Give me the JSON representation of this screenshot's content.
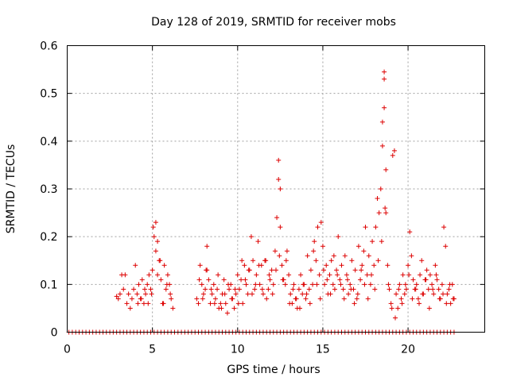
{
  "chart_data": {
    "type": "scatter",
    "title": "Day 128 of 2019, SRMTID for receiver mobs",
    "xlabel": "GPS time / hours",
    "ylabel": "SRMTID / TECUs",
    "xlim": [
      0,
      24.5
    ],
    "ylim": [
      0,
      0.6
    ],
    "xticks": [
      0,
      5,
      10,
      15,
      20
    ],
    "xtick_labels": [
      "0",
      "5",
      "10",
      "15",
      "20"
    ],
    "yticks": [
      0,
      0.1,
      0.2,
      0.3,
      0.4,
      0.5,
      0.6
    ],
    "ytick_labels": [
      "0",
      "0.1",
      "0.2",
      "0.3",
      "0.4",
      "0.5",
      "0.6"
    ],
    "grid": true,
    "legend": "none",
    "marker": "+",
    "color": "#dd0000",
    "series": [
      {
        "name": "SRMTID",
        "x": [
          0.1,
          0.3,
          0.5,
          0.7,
          0.9,
          1.1,
          1.3,
          1.5,
          1.7,
          1.9,
          2.1,
          2.3,
          2.5,
          2.7,
          2.9,
          3.1,
          3.3,
          3.5,
          3.7,
          3.9,
          4.1,
          4.3,
          4.5,
          4.7,
          4.9,
          5.1,
          5.3,
          5.5,
          5.7,
          5.9,
          6.1,
          6.3,
          6.5,
          6.7,
          6.9,
          7.1,
          7.3,
          7.5,
          7.7,
          7.9,
          8.1,
          8.3,
          8.5,
          8.7,
          8.9,
          9.1,
          9.3,
          9.5,
          9.7,
          9.9,
          10.1,
          10.3,
          10.5,
          10.7,
          10.9,
          11.1,
          11.3,
          11.5,
          11.7,
          11.9,
          12.1,
          12.3,
          12.5,
          12.7,
          12.9,
          13.1,
          13.3,
          13.5,
          13.7,
          13.9,
          14.1,
          14.3,
          14.5,
          14.7,
          14.9,
          15.1,
          15.3,
          15.5,
          15.7,
          15.9,
          16.1,
          16.3,
          16.5,
          16.7,
          16.9,
          17.1,
          17.3,
          17.5,
          17.7,
          17.9,
          18.1,
          18.3,
          18.5,
          18.7,
          18.9,
          19.1,
          19.3,
          19.5,
          19.7,
          19.9,
          20.1,
          20.3,
          20.5,
          20.7,
          20.9,
          21.1,
          21.3,
          21.5,
          21.7,
          21.9,
          22.1,
          22.3,
          22.5,
          22.7,
          2.9,
          3.0,
          3.1,
          3.2,
          3.3,
          3.5,
          3.7,
          3.8,
          3.9,
          4.0,
          4.1,
          4.2,
          4.3,
          4.4,
          4.5,
          4.6,
          4.7,
          4.8,
          4.9,
          5.0,
          5.1,
          5.2,
          5.2,
          5.3,
          5.3,
          5.4,
          5.5,
          5.6,
          5.7,
          5.8,
          5.9,
          6.0,
          6.1,
          6.2,
          7.6,
          7.7,
          7.8,
          7.9,
          8.0,
          8.1,
          8.2,
          8.2,
          8.3,
          8.4,
          8.5,
          8.6,
          8.7,
          8.8,
          8.9,
          9.0,
          9.1,
          9.2,
          9.3,
          9.4,
          9.5,
          9.6,
          9.7,
          9.8,
          9.9,
          10.0,
          10.1,
          10.2,
          10.3,
          10.4,
          10.5,
          10.6,
          10.7,
          10.8,
          10.9,
          11.0,
          11.1,
          11.2,
          11.3,
          11.4,
          11.5,
          11.6,
          11.7,
          11.8,
          11.9,
          12.0,
          12.1,
          12.2,
          12.3,
          12.4,
          12.4,
          12.5,
          12.5,
          12.6,
          12.7,
          12.8,
          12.9,
          13.0,
          13.1,
          13.2,
          13.3,
          13.4,
          13.5,
          13.6,
          13.7,
          13.8,
          13.9,
          14.0,
          14.1,
          14.2,
          14.3,
          14.4,
          14.5,
          14.6,
          14.7,
          14.8,
          14.9,
          15.0,
          15.1,
          15.2,
          15.3,
          15.4,
          15.5,
          15.6,
          15.7,
          15.8,
          15.9,
          16.0,
          16.1,
          16.2,
          16.3,
          16.4,
          16.5,
          16.6,
          16.7,
          16.8,
          16.9,
          17.0,
          17.1,
          17.2,
          17.3,
          17.4,
          17.5,
          17.6,
          17.7,
          17.8,
          17.9,
          18.0,
          18.1,
          18.2,
          18.3,
          18.4,
          18.5,
          18.5,
          18.6,
          18.6,
          18.6,
          18.7,
          18.7,
          18.8,
          18.9,
          19.0,
          19.1,
          19.2,
          19.3,
          19.4,
          19.5,
          19.6,
          19.7,
          19.8,
          19.9,
          20.0,
          20.1,
          20.2,
          20.3,
          20.4,
          20.5,
          20.6,
          20.7,
          20.8,
          20.9,
          21.0,
          21.1,
          21.2,
          21.3,
          21.4,
          21.5,
          21.6,
          21.7,
          21.8,
          21.9,
          22.0,
          22.1,
          22.2,
          22.3,
          22.4,
          22.5,
          22.6,
          22.7,
          3.4,
          3.6,
          4.15,
          4.35,
          4.55,
          4.75,
          4.95,
          5.05,
          5.45,
          5.65,
          5.85,
          6.05,
          7.75,
          7.95,
          8.15,
          8.45,
          8.65,
          8.85,
          9.05,
          9.25,
          9.45,
          9.65,
          9.85,
          10.05,
          10.25,
          10.45,
          10.65,
          10.85,
          11.05,
          11.25,
          11.45,
          11.65,
          11.85,
          12.05,
          12.25,
          12.45,
          12.65,
          12.85,
          13.05,
          13.25,
          13.45,
          13.65,
          13.85,
          14.05,
          14.25,
          14.45,
          14.65,
          14.85,
          15.05,
          15.25,
          15.45,
          15.65,
          15.85,
          16.05,
          16.25,
          16.45,
          16.65,
          16.85,
          17.05,
          17.25,
          17.45,
          17.65,
          17.85,
          18.05,
          18.25,
          18.45,
          18.65,
          18.85,
          19.05,
          19.25,
          19.45,
          19.65,
          19.85,
          20.05,
          20.25,
          20.45,
          20.65,
          20.85,
          21.05,
          21.25,
          21.45,
          21.65,
          21.85,
          22.05,
          22.25,
          22.45,
          22.65
        ],
        "y": [
          0,
          0,
          0,
          0,
          0,
          0,
          0,
          0,
          0,
          0,
          0,
          0,
          0,
          0,
          0,
          0,
          0,
          0,
          0,
          0,
          0,
          0,
          0,
          0,
          0,
          0,
          0,
          0,
          0,
          0,
          0,
          0,
          0,
          0,
          0,
          0,
          0,
          0,
          0,
          0,
          0,
          0,
          0,
          0,
          0,
          0,
          0,
          0,
          0,
          0,
          0,
          0,
          0,
          0,
          0,
          0,
          0,
          0,
          0,
          0,
          0,
          0,
          0,
          0,
          0,
          0,
          0,
          0,
          0,
          0,
          0,
          0,
          0,
          0,
          0,
          0,
          0,
          0,
          0,
          0,
          0,
          0,
          0,
          0,
          0,
          0,
          0,
          0,
          0,
          0,
          0,
          0,
          0,
          0,
          0,
          0,
          0,
          0,
          0,
          0,
          0,
          0,
          0,
          0,
          0,
          0,
          0,
          0,
          0,
          0,
          0,
          0,
          0,
          0,
          0.075,
          0.07,
          0.08,
          0.12,
          0.09,
          0.06,
          0.05,
          0.07,
          0.09,
          0.14,
          0.08,
          0.1,
          0.07,
          0.11,
          0.06,
          0.08,
          0.1,
          0.12,
          0.09,
          0.13,
          0.2,
          0.17,
          0.23,
          0.12,
          0.19,
          0.15,
          0.11,
          0.06,
          0.14,
          0.09,
          0.12,
          0.1,
          0.07,
          0.05,
          0.07,
          0.06,
          0.14,
          0.1,
          0.08,
          0.09,
          0.18,
          0.13,
          0.11,
          0.06,
          0.08,
          0.1,
          0.07,
          0.09,
          0.05,
          0.06,
          0.08,
          0.11,
          0.06,
          0.04,
          0.09,
          0.1,
          0.07,
          0.05,
          0.08,
          0.12,
          0.09,
          0.11,
          0.06,
          0.14,
          0.1,
          0.08,
          0.13,
          0.2,
          0.15,
          0.09,
          0.12,
          0.19,
          0.1,
          0.14,
          0.08,
          0.15,
          0.07,
          0.09,
          0.11,
          0.13,
          0.1,
          0.17,
          0.24,
          0.32,
          0.36,
          0.3,
          0.22,
          0.14,
          0.11,
          0.1,
          0.17,
          0.12,
          0.08,
          0.06,
          0.1,
          0.07,
          0.05,
          0.09,
          0.12,
          0.08,
          0.1,
          0.07,
          0.16,
          0.09,
          0.13,
          0.1,
          0.19,
          0.15,
          0.22,
          0.12,
          0.23,
          0.18,
          0.1,
          0.14,
          0.08,
          0.12,
          0.15,
          0.1,
          0.09,
          0.13,
          0.2,
          0.11,
          0.14,
          0.09,
          0.16,
          0.12,
          0.08,
          0.1,
          0.15,
          0.09,
          0.13,
          0.07,
          0.18,
          0.11,
          0.14,
          0.17,
          0.22,
          0.12,
          0.16,
          0.1,
          0.19,
          0.14,
          0.22,
          0.28,
          0.25,
          0.3,
          0.39,
          0.44,
          0.47,
          0.53,
          0.545,
          0.34,
          0.25,
          0.14,
          0.09,
          0.06,
          0.37,
          0.38,
          0.08,
          0.05,
          0.1,
          0.07,
          0.12,
          0.08,
          0.09,
          0.14,
          0.21,
          0.16,
          0.11,
          0.09,
          0.1,
          0.07,
          0.12,
          0.15,
          0.08,
          0.11,
          0.13,
          0.09,
          0.12,
          0.1,
          0.08,
          0.14,
          0.11,
          0.09,
          0.07,
          0.1,
          0.22,
          0.18,
          0.08,
          0.09,
          0.06,
          0.1,
          0.07,
          0.12,
          0.08,
          0.06,
          0.07,
          0.09,
          0.06,
          0.08,
          0.22,
          0.15,
          0.06,
          0.1,
          0.08,
          0.11,
          0.07,
          0.13,
          0.09,
          0.06,
          0.12,
          0.05,
          0.08,
          0.1,
          0.07,
          0.09,
          0.06,
          0.15,
          0.11,
          0.13,
          0.08,
          0.1,
          0.14,
          0.09,
          0.15,
          0.12,
          0.08,
          0.13,
          0.16,
          0.11,
          0.15,
          0.06,
          0.09,
          0.07,
          0.05,
          0.1,
          0.08,
          0.06,
          0.17,
          0.1,
          0.07,
          0.13,
          0.11,
          0.08,
          0.16,
          0.12,
          0.1,
          0.07,
          0.11,
          0.09,
          0.06,
          0.08,
          0.13,
          0.1,
          0.07,
          0.12,
          0.09,
          0.15,
          0.19,
          0.26,
          0.1,
          0.05,
          0.03,
          0.09,
          0.06,
          0.1,
          0.12,
          0.07,
          0.09,
          0.06,
          0.08,
          0.11,
          0.05,
          0.09,
          0.12,
          0.07,
          0.08,
          0.06,
          0.1,
          0.07
        ]
      }
    ]
  }
}
